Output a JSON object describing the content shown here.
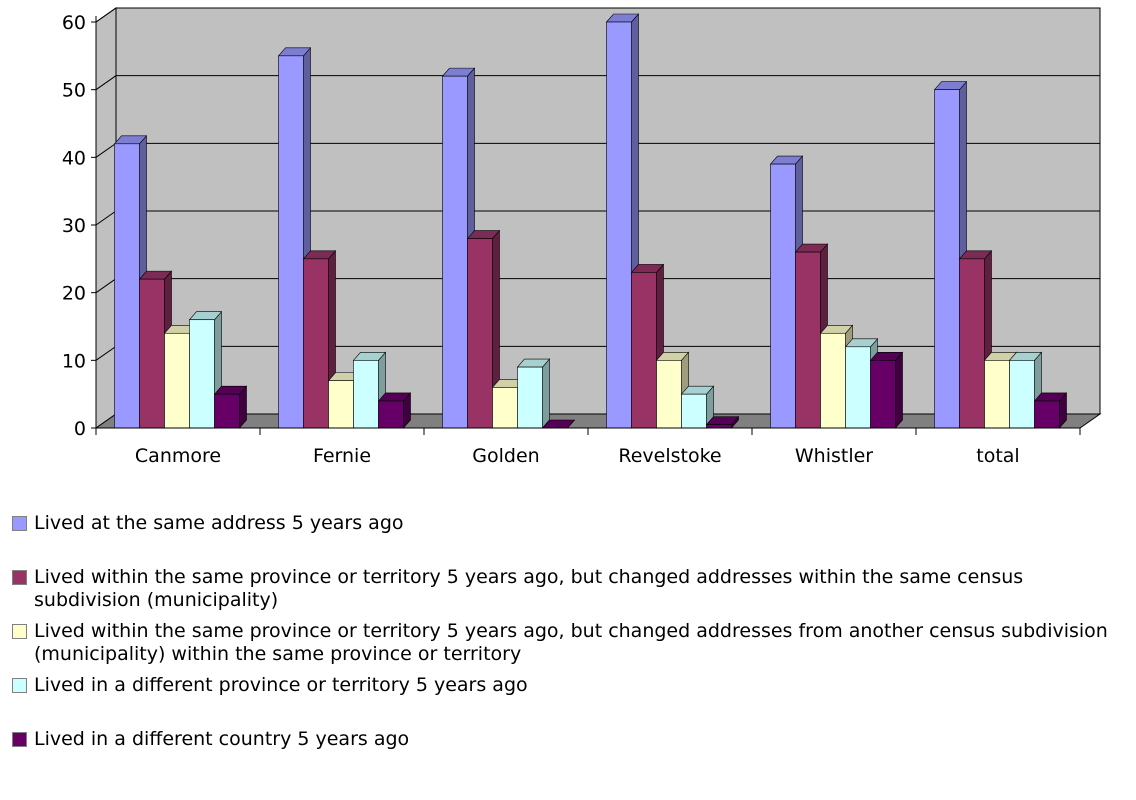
{
  "chart_data": {
    "type": "bar",
    "categories": [
      "Canmore",
      "Fernie",
      "Golden",
      "Revelstoke",
      "Whistler",
      "total"
    ],
    "series": [
      {
        "name": "Lived at the same address 5 years ago",
        "values": [
          42,
          55,
          52,
          60,
          39,
          50
        ]
      },
      {
        "name": "Lived within the same province or territory 5 years ago, but changed addresses within the same census subdivision (municipality)",
        "values": [
          22,
          25,
          28,
          23,
          26,
          25
        ]
      },
      {
        "name": "Lived within the same province or territory 5 years ago, but changed addresses from another census subdivision (municipality) within the same province or territory",
        "values": [
          14,
          7,
          6,
          10,
          14,
          10
        ]
      },
      {
        "name": "Lived in a different province or territory 5 years ago",
        "values": [
          16,
          10,
          9,
          5,
          12,
          10
        ]
      },
      {
        "name": "Lived in a different country 5 years ago",
        "values": [
          5,
          4,
          0,
          0.5,
          10,
          4
        ]
      }
    ],
    "colors": [
      "#9999ff",
      "#993366",
      "#ffffcc",
      "#ccffff",
      "#660066"
    ],
    "ylim": [
      0,
      60
    ],
    "yticks": [
      0,
      10,
      20,
      30,
      40,
      50,
      60
    ],
    "grid": true,
    "legend_position": "bottom",
    "style": "3d-clustered-column",
    "wall_color": "#c0c0c0",
    "floor_color": "#808080"
  }
}
